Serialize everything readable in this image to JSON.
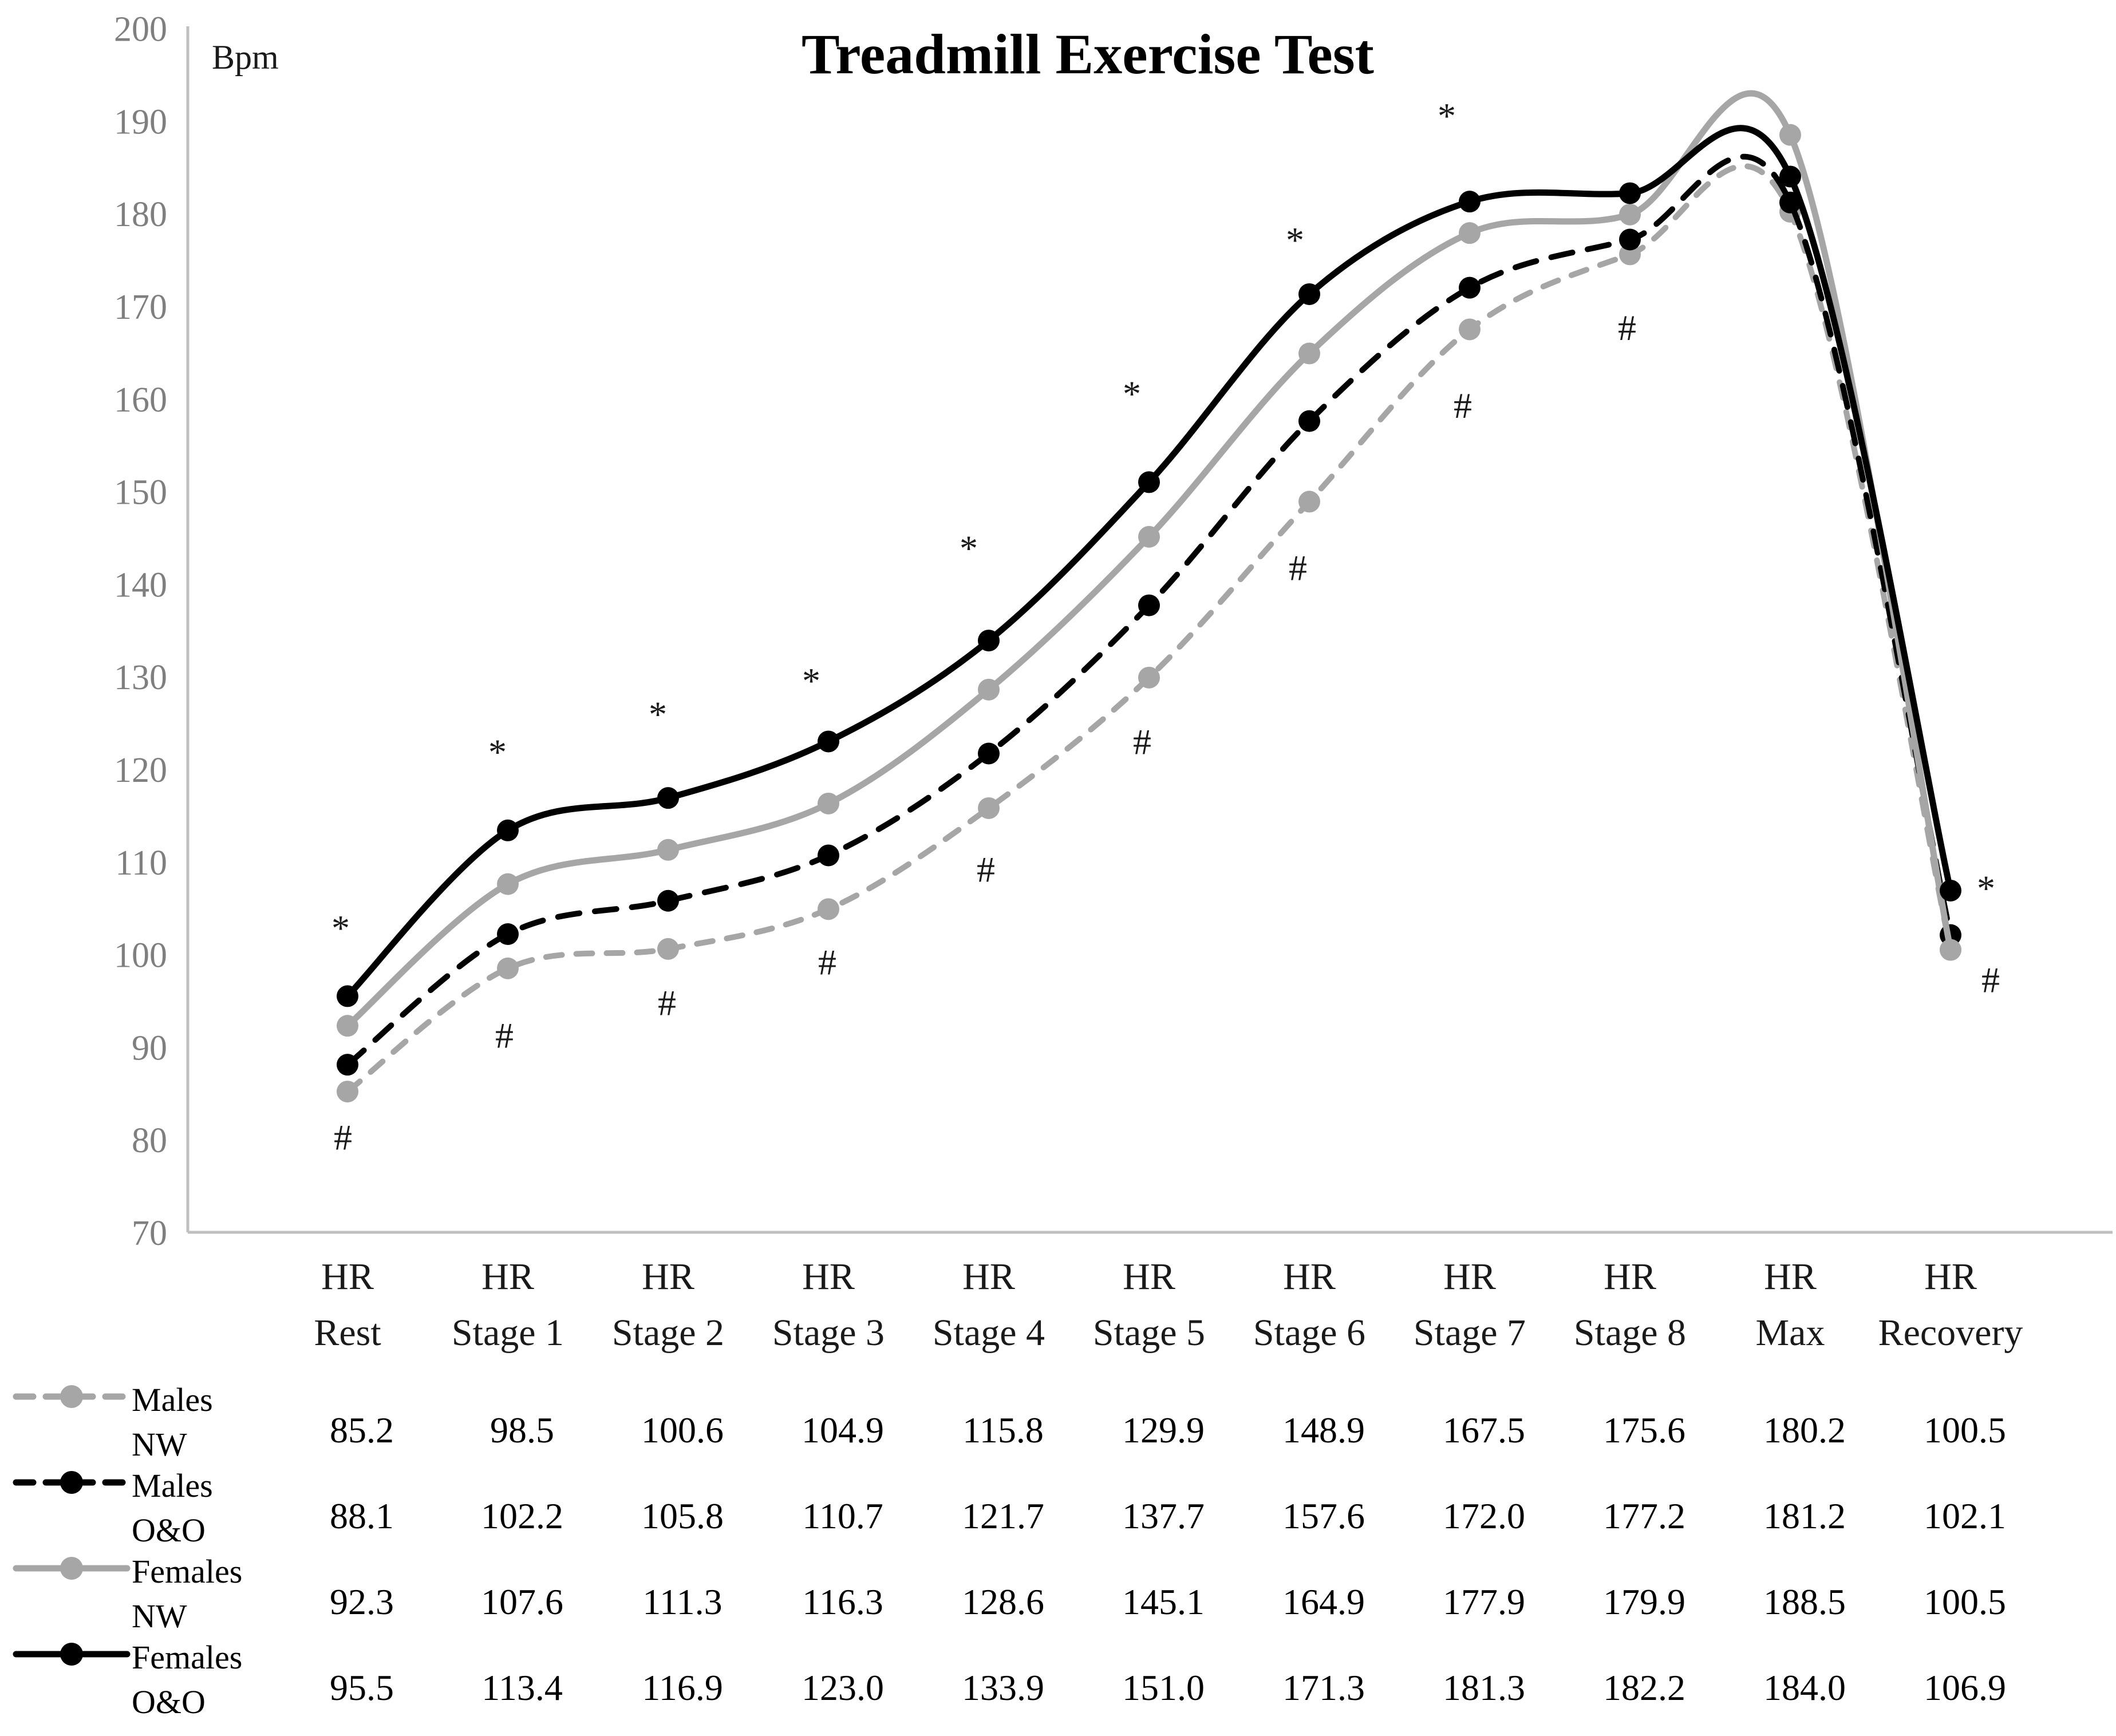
{
  "title": "Treadmill Exercise Test",
  "y_axis": {
    "unit_label": "Bpm",
    "min": 70,
    "max": 200,
    "step": 10
  },
  "x_axis": {
    "categories": [
      {
        "top": "HR",
        "bottom": "Rest"
      },
      {
        "top": "HR",
        "bottom": "Stage 1"
      },
      {
        "top": "HR",
        "bottom": "Stage 2"
      },
      {
        "top": "HR",
        "bottom": "Stage 3"
      },
      {
        "top": "HR",
        "bottom": "Stage 4"
      },
      {
        "top": "HR",
        "bottom": "Stage 5"
      },
      {
        "top": "HR",
        "bottom": "Stage 6"
      },
      {
        "top": "HR",
        "bottom": "Stage 7"
      },
      {
        "top": "HR",
        "bottom": "Stage 8"
      },
      {
        "top": "HR",
        "bottom": "Max"
      },
      {
        "top": "HR",
        "bottom": "Recovery"
      }
    ]
  },
  "chart_data": {
    "type": "line",
    "smoothed": true,
    "grid": false,
    "title": "Treadmill Exercise Test",
    "ylabel": "Bpm",
    "ylim": [
      70,
      200
    ],
    "y_tick_step": 10,
    "legend_position": "bottom-left",
    "categories": [
      "HR Rest",
      "HR Stage 1",
      "HR Stage 2",
      "HR Stage 3",
      "HR Stage 4",
      "HR Stage 5",
      "HR Stage 6",
      "HR Stage 7",
      "HR Stage 8",
      "HR Max",
      "HR Recovery"
    ],
    "series": [
      {
        "name": "Males NW",
        "label_lines": [
          "Males",
          "NW"
        ],
        "color": "#a6a6a6",
        "style": "dashed",
        "values": [
          85.2,
          98.5,
          100.6,
          104.9,
          115.8,
          129.9,
          148.9,
          167.5,
          175.6,
          180.2,
          100.5
        ],
        "value_labels": [
          "85.2",
          "98.5",
          "100.6",
          "104.9",
          "115.8",
          "129.9",
          "148.9",
          "167.5",
          "175.6",
          "180.2",
          "100.5"
        ]
      },
      {
        "name": "Males O&O",
        "label_lines": [
          "Males",
          "O&O"
        ],
        "color": "#000000",
        "style": "dashed",
        "values": [
          88.1,
          102.2,
          105.8,
          110.7,
          121.7,
          137.7,
          157.6,
          172.0,
          177.2,
          181.2,
          102.1
        ],
        "value_labels": [
          "88.1",
          "102.2",
          "105.8",
          "110.7",
          "121.7",
          "137.7",
          "157.6",
          "172.0",
          "177.2",
          "181.2",
          "102.1"
        ]
      },
      {
        "name": "Females NW",
        "label_lines": [
          "Females",
          "NW"
        ],
        "color": "#a6a6a6",
        "style": "solid",
        "values": [
          92.3,
          107.6,
          111.3,
          116.3,
          128.6,
          145.1,
          164.9,
          177.9,
          179.9,
          188.5,
          100.5
        ],
        "value_labels": [
          "92.3",
          "107.6",
          "111.3",
          "116.3",
          "128.6",
          "145.1",
          "164.9",
          "177.9",
          "179.9",
          "188.5",
          "100.5"
        ]
      },
      {
        "name": "Females O&O",
        "label_lines": [
          "Females",
          "O&O"
        ],
        "color": "#000000",
        "style": "solid",
        "values": [
          95.5,
          113.4,
          116.9,
          123.0,
          133.9,
          151.0,
          171.3,
          181.3,
          182.2,
          184.0,
          106.9
        ],
        "value_labels": [
          "95.5",
          "113.4",
          "116.9",
          "123.0",
          "133.9",
          "151.0",
          "171.3",
          "181.3",
          "182.2",
          "184.0",
          "106.9"
        ]
      }
    ],
    "annotations": {
      "star": {
        "symbol": "*",
        "points": [
          {
            "category": 0,
            "bpm": 104.3,
            "dx": -12
          },
          {
            "category": 1,
            "bpm": 123.3,
            "dx": -18
          },
          {
            "category": 2,
            "bpm": 127.4,
            "dx": -18
          },
          {
            "category": 3,
            "bpm": 131.0,
            "dx": -30
          },
          {
            "category": 4,
            "bpm": 145.3,
            "dx": -35
          },
          {
            "category": 5,
            "bpm": 162.0,
            "dx": -30
          },
          {
            "category": 6,
            "bpm": 178.6,
            "dx": -25
          },
          {
            "category": 7,
            "bpm": 192.0,
            "dx": -40
          },
          {
            "category": 10,
            "bpm": 108.6,
            "dx": 62
          }
        ]
      },
      "hash": {
        "symbol": "#",
        "points": [
          {
            "category": 0,
            "bpm": 80.3,
            "dx": -8
          },
          {
            "category": 1,
            "bpm": 91.3,
            "dx": -6
          },
          {
            "category": 2,
            "bpm": 94.8,
            "dx": -2
          },
          {
            "category": 3,
            "bpm": 99.2,
            "dx": -2
          },
          {
            "category": 4,
            "bpm": 109.2,
            "dx": -5
          },
          {
            "category": 5,
            "bpm": 123.0,
            "dx": -12
          },
          {
            "category": 6,
            "bpm": 141.8,
            "dx": -20
          },
          {
            "category": 7,
            "bpm": 159.3,
            "dx": -12
          },
          {
            "category": 8,
            "bpm": 167.7,
            "dx": -5
          },
          {
            "category": 10,
            "bpm": 97.3,
            "dx": 70
          }
        ]
      }
    }
  },
  "colors": {
    "axis_line": "#bfbfbf",
    "y_tick_text": "#7f7f7f",
    "label_text": "#1a1a1a",
    "gray_series": "#a6a6a6",
    "black_series": "#000000"
  }
}
